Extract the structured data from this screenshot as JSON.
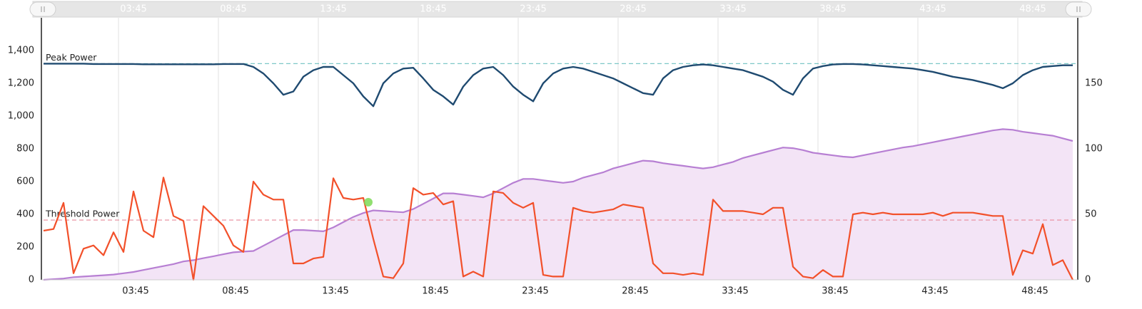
{
  "chart_data": {
    "type": "line",
    "xlim": [
      0,
      51.75
    ],
    "xticks": [
      {
        "value": 3.75,
        "label": "03:45"
      },
      {
        "value": 8.75,
        "label": "08:45"
      },
      {
        "value": 13.75,
        "label": "13:45"
      },
      {
        "value": 18.75,
        "label": "18:45"
      },
      {
        "value": 23.75,
        "label": "23:45"
      },
      {
        "value": 28.75,
        "label": "28:45"
      },
      {
        "value": 33.75,
        "label": "33:45"
      },
      {
        "value": 38.75,
        "label": "38:45"
      },
      {
        "value": 43.75,
        "label": "43:45"
      },
      {
        "value": 48.75,
        "label": "48:45"
      }
    ],
    "ylim": [
      0,
      1600
    ],
    "yticks": [
      0,
      200,
      400,
      600,
      800,
      {
        "value": 1000,
        "label": "1,000"
      },
      {
        "value": 1200,
        "label": "1,200"
      },
      {
        "value": 1400,
        "label": "1,400"
      }
    ],
    "y2lim": [
      0,
      200
    ],
    "y2ticks": [
      0,
      50,
      100,
      150
    ],
    "grid": true,
    "x": [
      0,
      0.5,
      1,
      1.5,
      2,
      2.5,
      3,
      3.5,
      4,
      4.5,
      5,
      5.5,
      6,
      6.5,
      7,
      7.5,
      8,
      8.5,
      9,
      9.5,
      10,
      10.5,
      11,
      11.5,
      12,
      12.5,
      13,
      13.5,
      14,
      14.5,
      15,
      15.5,
      16,
      16.5,
      17,
      17.5,
      18,
      18.5,
      19,
      19.5,
      20,
      20.5,
      21,
      21.5,
      22,
      22.5,
      23,
      23.5,
      24,
      24.5,
      25,
      25.5,
      26,
      26.5,
      27,
      27.5,
      28,
      28.5,
      29,
      29.5,
      30,
      30.5,
      31,
      31.5,
      32,
      32.5,
      33,
      33.5,
      34,
      34.5,
      35,
      35.5,
      36,
      36.5,
      37,
      37.5,
      38,
      38.5,
      39,
      39.5,
      40,
      40.5,
      41,
      41.5,
      42,
      42.5,
      43,
      43.5,
      44,
      44.5,
      45,
      45.5,
      46,
      46.5,
      47,
      47.5,
      48,
      48.5,
      49,
      49.5,
      50,
      50.5,
      51,
      51.5
    ],
    "series": [
      {
        "type": "area",
        "axis": "y2",
        "color": "#b77fd3",
        "fill": "#f3e4f6",
        "values": [
          0,
          0.5,
          1,
          2,
          2.5,
          3,
          3.5,
          4,
          5,
          6,
          7.5,
          9,
          10.5,
          12,
          14,
          15,
          16.5,
          18,
          19.5,
          21,
          21.5,
          22,
          26,
          30,
          34,
          38,
          38,
          37.5,
          37,
          40,
          44,
          48,
          51,
          53,
          52.5,
          52,
          51.5,
          54,
          58,
          62,
          66,
          66,
          65,
          64,
          63,
          66,
          70,
          74,
          77,
          77,
          76,
          75,
          74,
          75,
          78,
          80,
          82,
          85,
          87,
          89,
          91,
          90.5,
          89,
          88,
          87,
          86,
          85,
          86,
          88,
          90,
          93,
          95,
          97,
          99,
          101,
          100.5,
          99,
          97,
          96,
          95,
          94,
          93.5,
          95,
          96.5,
          98,
          99.5,
          101,
          102,
          103.5,
          105,
          106.5,
          108,
          109.5,
          111,
          112.5,
          114,
          115,
          114.5,
          113,
          112,
          111,
          110,
          108,
          106
        ]
      },
      {
        "type": "line",
        "axis": "y",
        "color": "#1f4a70",
        "values": [
          1320,
          1320,
          1320,
          1320,
          1320,
          1318,
          1318,
          1318,
          1318,
          1318,
          1316,
          1316,
          1316,
          1316,
          1316,
          1316,
          1316,
          1316,
          1318,
          1318,
          1318,
          1300,
          1260,
          1200,
          1130,
          1150,
          1240,
          1280,
          1300,
          1300,
          1250,
          1200,
          1120,
          1060,
          1200,
          1260,
          1290,
          1295,
          1230,
          1160,
          1120,
          1070,
          1180,
          1250,
          1290,
          1300,
          1250,
          1180,
          1130,
          1090,
          1200,
          1260,
          1290,
          1300,
          1290,
          1270,
          1250,
          1230,
          1200,
          1170,
          1140,
          1130,
          1230,
          1280,
          1300,
          1310,
          1315,
          1310,
          1300,
          1290,
          1280,
          1260,
          1240,
          1210,
          1160,
          1130,
          1230,
          1290,
          1305,
          1315,
          1318,
          1318,
          1315,
          1310,
          1305,
          1300,
          1295,
          1290,
          1280,
          1270,
          1255,
          1240,
          1230,
          1220,
          1205,
          1190,
          1170,
          1200,
          1250,
          1280,
          1300,
          1305,
          1310,
          1310
        ]
      },
      {
        "type": "line",
        "axis": "y",
        "color": "#f2502a",
        "values": [
          300,
          310,
          470,
          40,
          190,
          210,
          150,
          290,
          170,
          540,
          300,
          260,
          625,
          390,
          360,
          0,
          450,
          390,
          330,
          210,
          170,
          600,
          520,
          490,
          490,
          100,
          100,
          130,
          140,
          620,
          500,
          490,
          500,
          250,
          20,
          10,
          100,
          560,
          520,
          530,
          460,
          480,
          20,
          50,
          20,
          540,
          530,
          470,
          440,
          470,
          30,
          20,
          20,
          440,
          420,
          410,
          420,
          430,
          460,
          450,
          440,
          100,
          40,
          40,
          30,
          40,
          30,
          490,
          420,
          420,
          420,
          410,
          400,
          440,
          440,
          80,
          20,
          10,
          60,
          20,
          20,
          400,
          410,
          400,
          410,
          400,
          400,
          400,
          400,
          410,
          390,
          410,
          410,
          410,
          400,
          390,
          390,
          30,
          180,
          160,
          340,
          90,
          120,
          0
        ]
      }
    ],
    "plot_lines": [
      {
        "label": "Peak Power",
        "value": 1320,
        "color": "#7ec8c8"
      },
      {
        "label": "Threshold Power",
        "value": 365,
        "color": "#e88a9a"
      }
    ],
    "highlight": {
      "x": 16.25,
      "value": 474,
      "color": "#7ed957"
    }
  }
}
